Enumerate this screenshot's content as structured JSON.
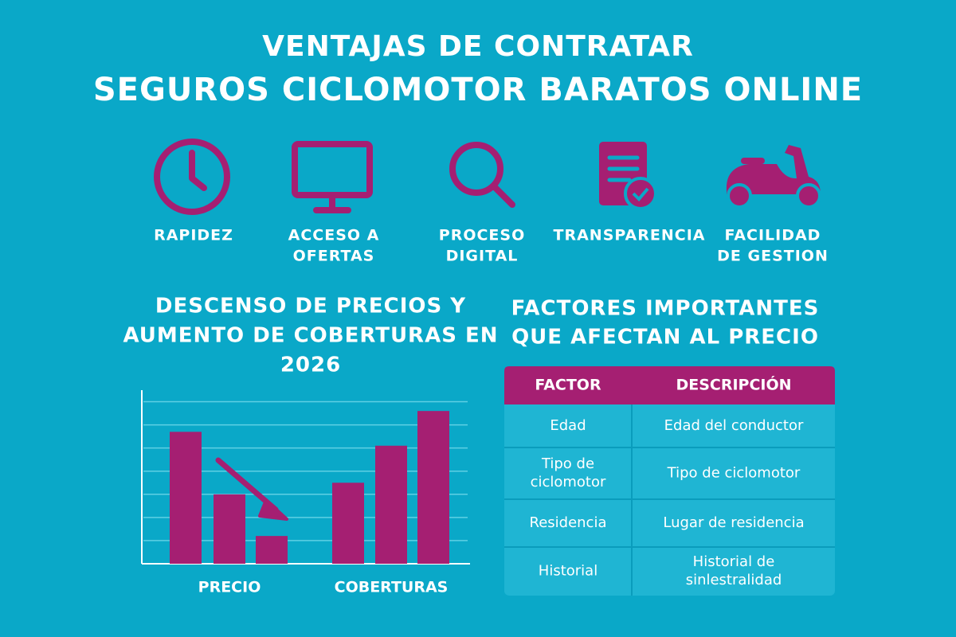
{
  "header": {
    "title": [
      "VENTAJAS DE CONTRATAR",
      "SEGUROS CICLOMOTOR BARATOS ONLINE"
    ]
  },
  "features": [
    {
      "label": [
        "RAPIDEZ"
      ]
    },
    {
      "label": [
        "ACCESO A",
        "OFERTAS"
      ]
    },
    {
      "label": [
        "PROCESO",
        "DIGITAL"
      ]
    },
    {
      "label": [
        "TRANSPARENCIA"
      ]
    },
    {
      "label": [
        "FACILIDAD",
        "DE GESTION"
      ]
    }
  ],
  "chart_data": {
    "type": "bar",
    "title": [
      "DESCENSO DE PRECIOS Y",
      "AUMENTO DE COBERTURAS EN",
      "2026"
    ],
    "categories": [
      null,
      "PRECIO",
      null,
      null,
      "COBERTURAS",
      null
    ],
    "values": [
      5.7,
      3.0,
      1.2,
      3.5,
      5.1,
      6.6
    ],
    "color": "#a51f72",
    "ylim": [
      0,
      7.5
    ],
    "yticks": [
      1,
      2,
      3,
      4,
      5,
      6,
      7
    ],
    "grid": true
  },
  "table": {
    "title": [
      "FACTORES IMPORTANTES",
      "QUE AFECTAN AL PRECIO"
    ],
    "header": [
      "FACTOR",
      "DESCRIPCIÓN"
    ],
    "rows": [
      [
        [
          "Edad"
        ],
        [
          "Edad del conductor"
        ]
      ],
      [
        [
          "Tipo de",
          "ciclomotor"
        ],
        [
          "Tipo de ciclomotor"
        ]
      ],
      [
        [
          "Residencia"
        ],
        [
          "Lugar de residencia"
        ]
      ],
      [
        [
          "Historial"
        ],
        [
          "Historial de",
          "sinlestralidad"
        ]
      ]
    ]
  }
}
